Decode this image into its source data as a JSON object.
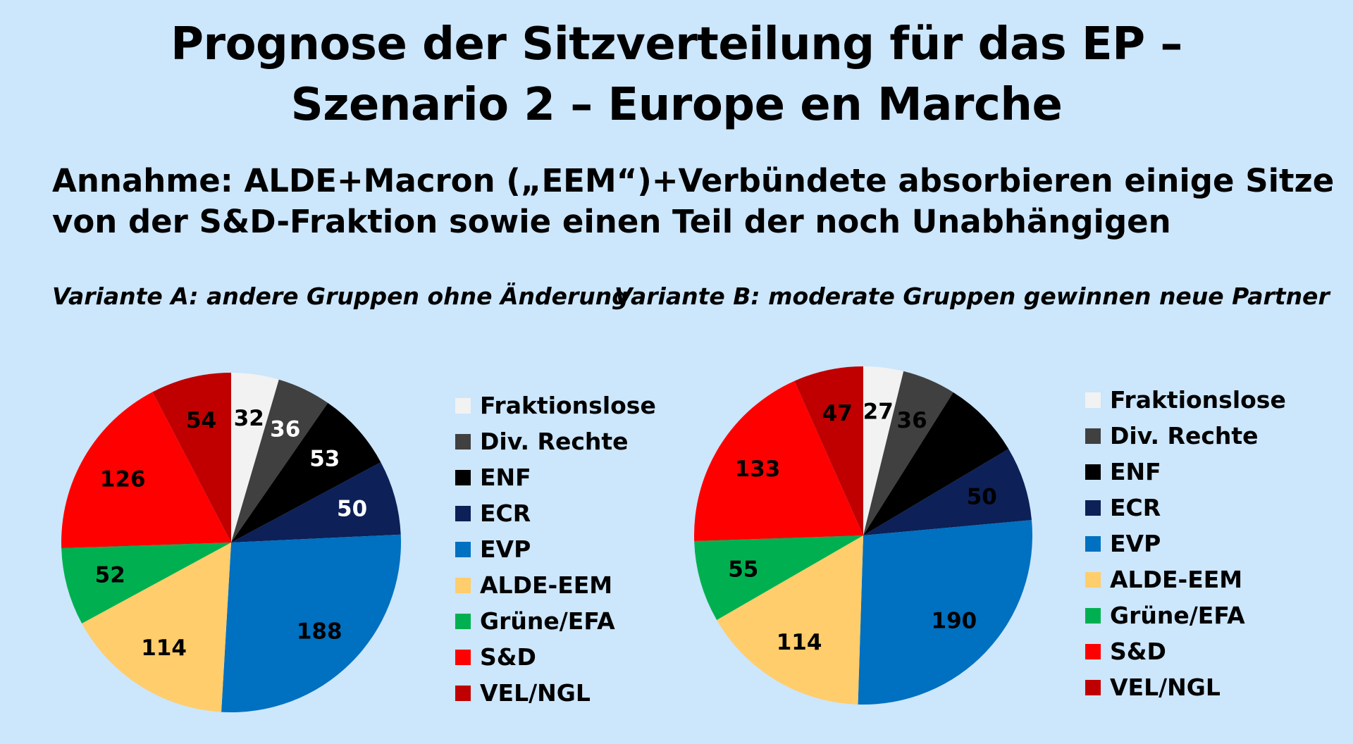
{
  "title_line1": "Prognose der Sitzverteilung für das EP –",
  "title_line2": "Szenario 2 – Europe en Marche",
  "assumption_line1": "Annahme: ALDE+Macron („EEM“)+Verbündete absorbieren einige Sitze",
  "assumption_line2": "von der S&D-Fraktion sowie einen Teil der noch Unabhängigen",
  "variant_a": "Variante A: andere Gruppen ohne Änderung",
  "variant_b": "Variante B: moderate Gruppen gewinnen neue Partner",
  "chart_data": [
    {
      "type": "pie",
      "title": "Variante A: andere Gruppen ohne Änderung",
      "categories": [
        "Fraktionslose",
        "Div. Rechte",
        "ENF",
        "ECR",
        "EVP",
        "ALDE-EEM",
        "Grüne/EFA",
        "S&D",
        "VEL/NGL"
      ],
      "values": [
        32,
        36,
        53,
        50,
        188,
        114,
        52,
        126,
        54
      ],
      "labels": [
        "32",
        "36",
        "53",
        "50",
        "188",
        "114",
        "52",
        "126",
        "54"
      ],
      "colors": [
        "#f2f2f2",
        "#404040",
        "#000000",
        "#0d2057",
        "#0070c0",
        "#ffcd6b",
        "#00b050",
        "#ff0000",
        "#c00000"
      ],
      "label_colors": [
        "#000000",
        "#ffffff",
        "#ffffff",
        "#ffffff",
        "#000000",
        "#000000",
        "#000000",
        "#000000",
        "#000000"
      ],
      "start_angle": 0,
      "direction": "clockwise",
      "legend_position": "right"
    },
    {
      "type": "pie",
      "title": "Variante B: moderate Gruppen gewinnen neue Partner",
      "categories": [
        "Fraktionslose",
        "Div. Rechte",
        "ENF",
        "ECR",
        "EVP",
        "ALDE-EEM",
        "Grüne/EFA",
        "S&D",
        "VEL/NGL"
      ],
      "values": [
        27,
        36,
        53,
        50,
        190,
        114,
        55,
        133,
        47
      ],
      "labels": [
        "27",
        "36",
        "",
        "50",
        "190",
        "114",
        "55",
        "133",
        "47"
      ],
      "colors": [
        "#f2f2f2",
        "#404040",
        "#000000",
        "#0d2057",
        "#0070c0",
        "#ffcd6b",
        "#00b050",
        "#ff0000",
        "#c00000"
      ],
      "label_colors": [
        "#000000",
        "#000000",
        "#000000",
        "#000000",
        "#000000",
        "#000000",
        "#000000",
        "#000000",
        "#000000"
      ],
      "start_angle": 0,
      "direction": "clockwise",
      "legend_position": "right"
    }
  ]
}
